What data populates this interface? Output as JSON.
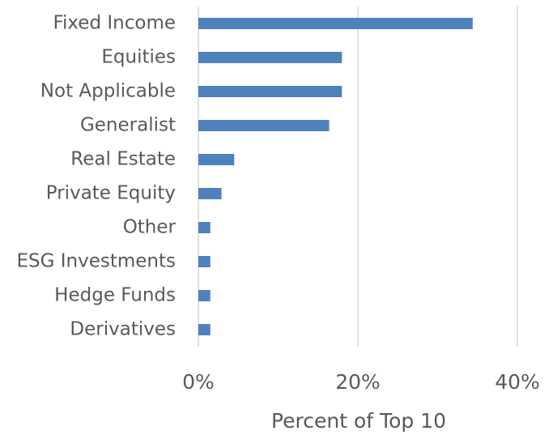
{
  "chart_data": {
    "type": "barh",
    "categories": [
      "Fixed Income",
      "Equities",
      "Not Applicable",
      "Generalist",
      "Real Estate",
      "Private Equity",
      "Other",
      "ESG Investments",
      "Hedge Funds",
      "Derivatives"
    ],
    "values": [
      34.4,
      18.0,
      18.0,
      16.4,
      4.5,
      2.9,
      1.5,
      1.5,
      1.5,
      1.5
    ],
    "color": "#4f81bd",
    "xlabel": "Percent of Top 10",
    "xlim": [
      0,
      40
    ],
    "xticks": [
      {
        "value": 0,
        "label": "0%"
      },
      {
        "value": 20,
        "label": "20%"
      },
      {
        "value": 40,
        "label": "40%"
      }
    ],
    "grid": true
  }
}
